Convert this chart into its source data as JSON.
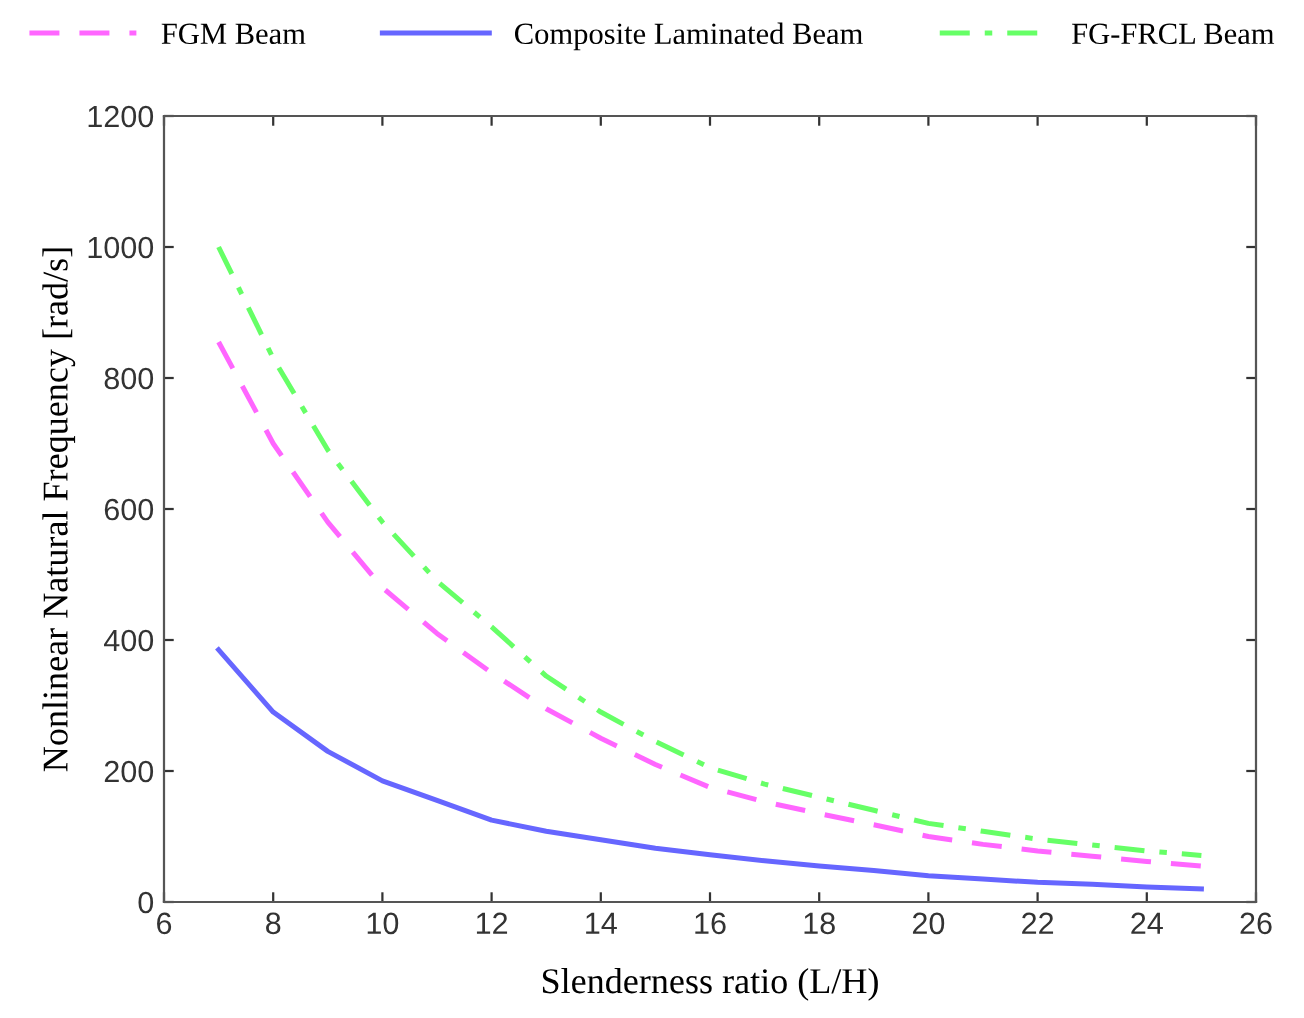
{
  "chart_data": {
    "type": "line",
    "xlabel": "Slenderness ratio (L/H)",
    "ylabel": "Nonlinear Natural Frequency [rad/s]",
    "x": [
      7,
      8,
      9,
      10,
      11,
      12,
      13,
      14,
      15,
      16,
      17,
      18,
      19,
      20,
      21,
      22,
      23,
      24,
      25
    ],
    "series": [
      {
        "name": "FGM Beam",
        "color": "#ff66ff",
        "line_style": "dashed",
        "values": [
          855,
          700,
          580,
          480,
          410,
          350,
          295,
          250,
          210,
          175,
          153,
          135,
          118,
          100,
          88,
          78,
          70,
          62,
          55
        ]
      },
      {
        "name": "Composite Laminated Beam",
        "color": "#6666ff",
        "line_style": "solid",
        "values": [
          385,
          290,
          230,
          185,
          155,
          125,
          108,
          95,
          82,
          72,
          63,
          55,
          48,
          40,
          35,
          30,
          27,
          23,
          20
        ]
      },
      {
        "name": "FG-FRCL Beam",
        "color": "#66ff66",
        "line_style": "dashdot",
        "values": [
          1000,
          830,
          690,
          580,
          490,
          420,
          345,
          290,
          245,
          205,
          180,
          160,
          140,
          120,
          108,
          96,
          87,
          78,
          71
        ]
      }
    ],
    "xlim": [
      6,
      26
    ],
    "xticks": [
      6,
      8,
      10,
      12,
      14,
      16,
      18,
      20,
      22,
      24,
      26
    ],
    "ylim": [
      0,
      1200
    ],
    "yticks": [
      0,
      200,
      400,
      600,
      800,
      1000,
      1200
    ],
    "grid": false,
    "legend": "top",
    "marker": "none"
  }
}
